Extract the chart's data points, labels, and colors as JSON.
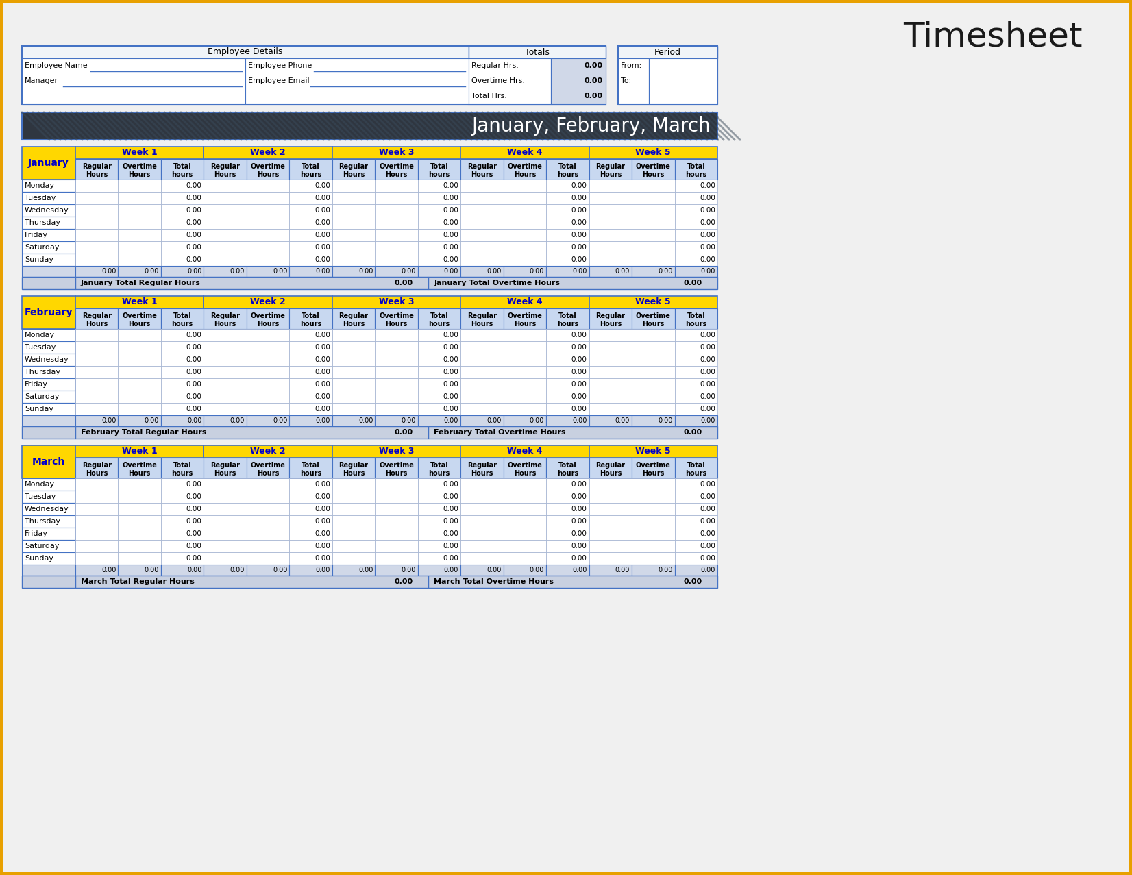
{
  "title": "Timesheet",
  "bg_color": "#f0f0f0",
  "orange_border": "#e8a000",
  "header_section": {
    "employee_details_label": "Employee Details",
    "totals_label": "Totals",
    "period_label": "Period",
    "fields_left": [
      "Employee Name",
      "Manager"
    ],
    "fields_right": [
      "Employee Phone",
      "Employee Email"
    ],
    "totals_fields": [
      "Regular Hrs.",
      "Overtime Hrs.",
      "Total Hrs."
    ],
    "totals_values": [
      "0.00",
      "0.00",
      "0.00"
    ],
    "period_fields": [
      "From:",
      "To:"
    ]
  },
  "quarter_banner": {
    "text": "January, February, March",
    "bg_color": "#2f3640",
    "text_color": "#ffffff",
    "stripe_color": "#4a5568"
  },
  "months": [
    "January",
    "February",
    "March"
  ],
  "weeks": [
    "Week 1",
    "Week 2",
    "Week 3",
    "Week 4",
    "Week 5"
  ],
  "days": [
    "Monday",
    "Tuesday",
    "Wednesday",
    "Thursday",
    "Friday",
    "Saturday",
    "Sunday"
  ],
  "col_headers": [
    "Regular\nHours",
    "Overtime\nHours",
    "Total\nhours"
  ],
  "yellow_color": "#FFD700",
  "yellow_text_color": "#0000CD",
  "light_blue_header": "#c8d8f0",
  "cell_bg": "#ffffff",
  "total_row_bg": "#d0d8e8",
  "summary_row_bg": "#c8d0e0",
  "border_color": "#4472c4",
  "light_border": "#a0b0d0",
  "value_color": "#000000",
  "gray_bg": "#e8e8e8",
  "totals_value_bg": "#d0d8e8"
}
